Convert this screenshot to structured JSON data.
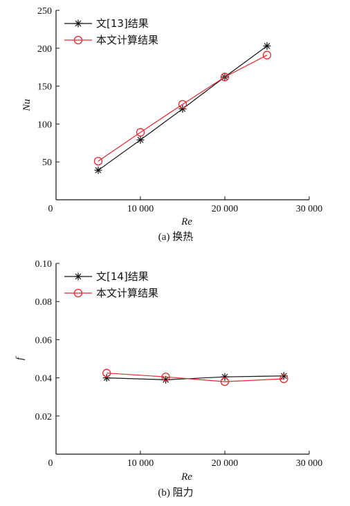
{
  "chart_data": [
    {
      "type": "line",
      "caption": "(a) 换热",
      "xlabel": "Re",
      "ylabel": "Nu",
      "xlim": [
        0,
        30000
      ],
      "ylim": [
        0,
        250
      ],
      "x_ticks": [
        "0",
        "10 000",
        "20 000",
        "30 000"
      ],
      "y_ticks": [
        "50",
        "100",
        "150",
        "200",
        "250"
      ],
      "legend_position": "top-left",
      "series": [
        {
          "name": "文[13]结果",
          "marker": "asterisk",
          "color": "#111111",
          "x": [
            5000,
            10000,
            15000,
            20000,
            25000
          ],
          "y": [
            39,
            79,
            120,
            162,
            203
          ]
        },
        {
          "name": "本文计算结果",
          "marker": "circle",
          "color": "#e8262b",
          "x": [
            5000,
            10000,
            15000,
            20000,
            25000
          ],
          "y": [
            51,
            89,
            126,
            162,
            191
          ]
        }
      ]
    },
    {
      "type": "line",
      "caption": "(b) 阻力",
      "xlabel": "Re",
      "ylabel": "f",
      "xlim": [
        0,
        30000
      ],
      "ylim": [
        0,
        0.1
      ],
      "x_ticks": [
        "0",
        "10 000",
        "20 000",
        "30 000"
      ],
      "y_ticks": [
        "0.02",
        "0.04",
        "0.06",
        "0.08",
        "0.10"
      ],
      "legend_position": "top-left",
      "series": [
        {
          "name": "文[14]结果",
          "marker": "asterisk",
          "color": "#111111",
          "x": [
            6000,
            13000,
            20000,
            27000
          ],
          "y": [
            0.04,
            0.039,
            0.0405,
            0.041
          ]
        },
        {
          "name": "本文计算结果",
          "marker": "circle",
          "color": "#e8262b",
          "x": [
            6000,
            13000,
            20000,
            27000
          ],
          "y": [
            0.0425,
            0.0405,
            0.038,
            0.0395
          ]
        }
      ]
    }
  ]
}
